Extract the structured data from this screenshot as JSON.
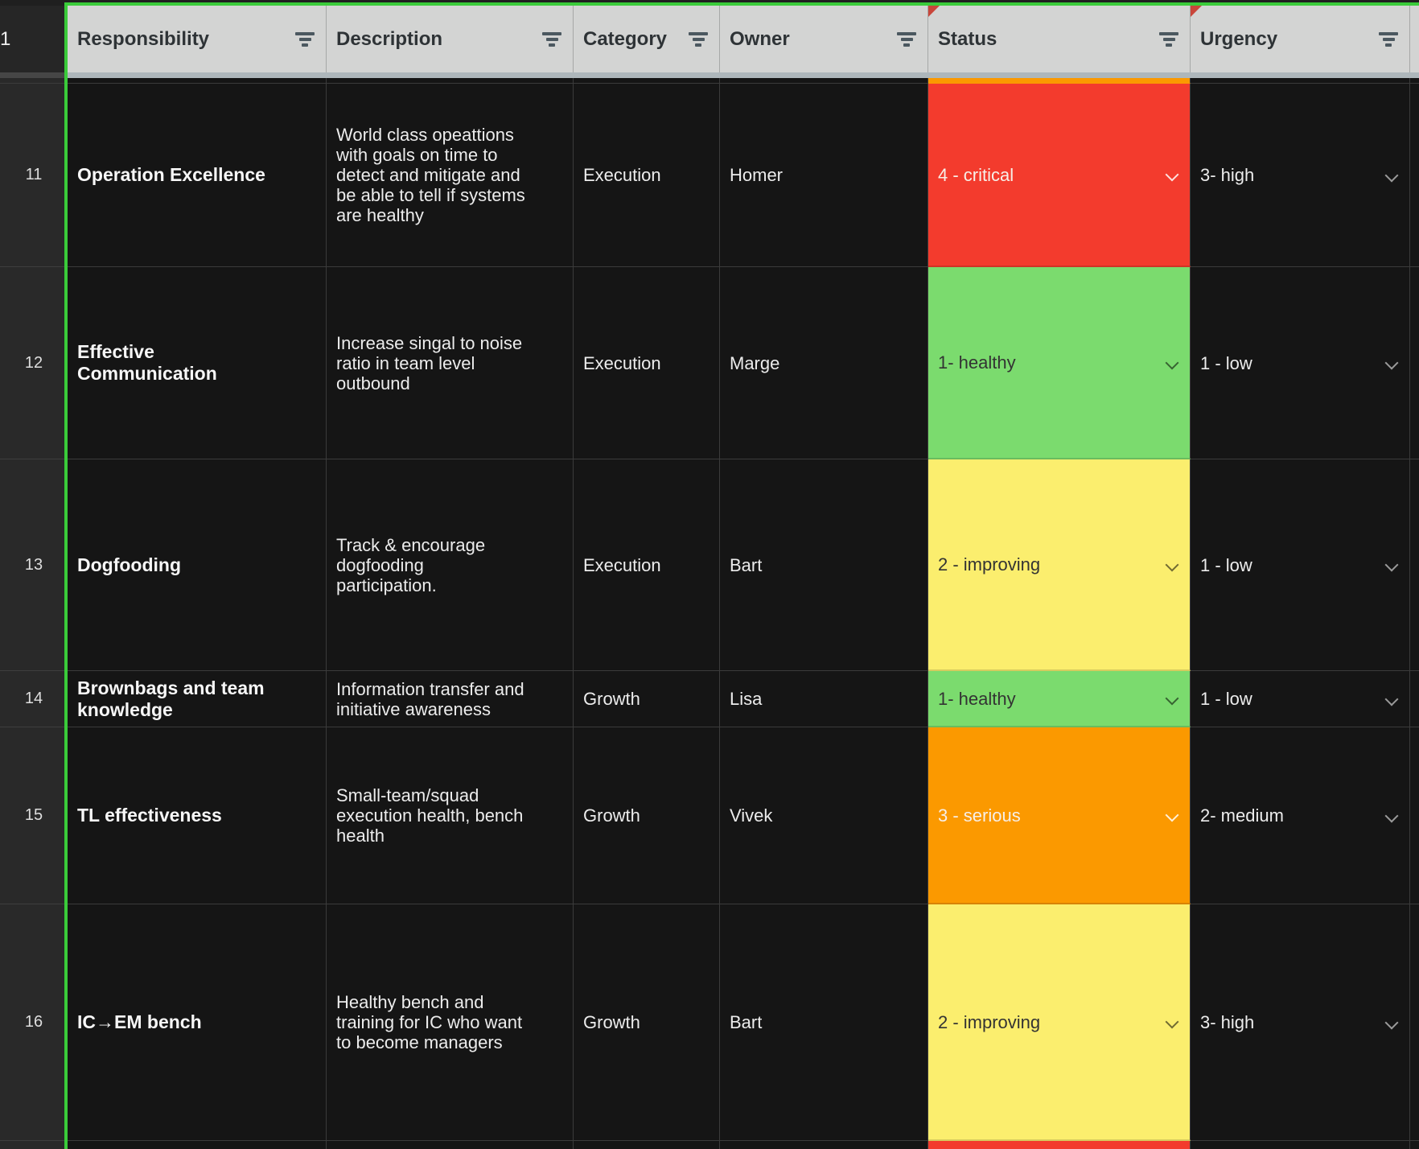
{
  "colors": {
    "selection_green": "#3acb3a",
    "status_red": "#f33b2d",
    "status_green": "#7bdb6e",
    "status_yellow": "#fbee6e",
    "status_orange": "#fb9900",
    "header_gray": "#d3d4d3"
  },
  "header": {
    "row_number": "1",
    "columns": [
      {
        "label": "Responsibility"
      },
      {
        "label": "Description"
      },
      {
        "label": "Category"
      },
      {
        "label": "Owner"
      },
      {
        "label": "Status",
        "note": true
      },
      {
        "label": "Urgency",
        "note": true
      }
    ]
  },
  "partials": {
    "top_status_color": "#fb9900",
    "bottom_status_color": "#f33b2d"
  },
  "rows": [
    {
      "number": "11",
      "responsibility": "Operation Excellence",
      "description": "World class opeattions\nwith goals on time to\ndetect and mitigate and\nbe able to tell if systems\nare healthy",
      "category": "Execution",
      "owner": "Homer",
      "status": {
        "label": "4 - critical",
        "color": "#f33b2d",
        "tone": "light"
      },
      "urgency": "3- high"
    },
    {
      "number": "12",
      "responsibility": "Effective\nCommunication",
      "description": "Increase singal to noise\nratio in team level\noutbound",
      "category": "Execution",
      "owner": "Marge",
      "status": {
        "label": "1- healthy",
        "color": "#7bdb6e",
        "tone": "dark"
      },
      "urgency": "1 - low"
    },
    {
      "number": "13",
      "responsibility": "Dogfooding",
      "description": "Track & encourage\ndogfooding\nparticipation.",
      "category": "Execution",
      "owner": "Bart",
      "status": {
        "label": "2 - improving",
        "color": "#fbee6e",
        "tone": "dark"
      },
      "urgency": "1 - low"
    },
    {
      "number": "14",
      "responsibility": "Brownbags and team\nknowledge",
      "description": "Information transfer and\ninitiative awareness",
      "category": "Growth",
      "owner": "Lisa",
      "status": {
        "label": "1- healthy",
        "color": "#7bdb6e",
        "tone": "dark"
      },
      "urgency": "1 - low"
    },
    {
      "number": "15",
      "responsibility": "TL effectiveness",
      "description": "Small-team/squad\nexecution health, bench\nhealth",
      "category": "Growth",
      "owner": "Vivek",
      "status": {
        "label": "3 - serious",
        "color": "#fb9900",
        "tone": "light"
      },
      "urgency": "2- medium"
    },
    {
      "number": "16",
      "responsibility": "IC→EM bench",
      "description": "Healthy bench and\ntraining for IC who want\nto become managers",
      "category": "Growth",
      "owner": "Bart",
      "status": {
        "label": "2 - improving",
        "color": "#fbee6e",
        "tone": "dark"
      },
      "urgency": "3- high"
    }
  ]
}
